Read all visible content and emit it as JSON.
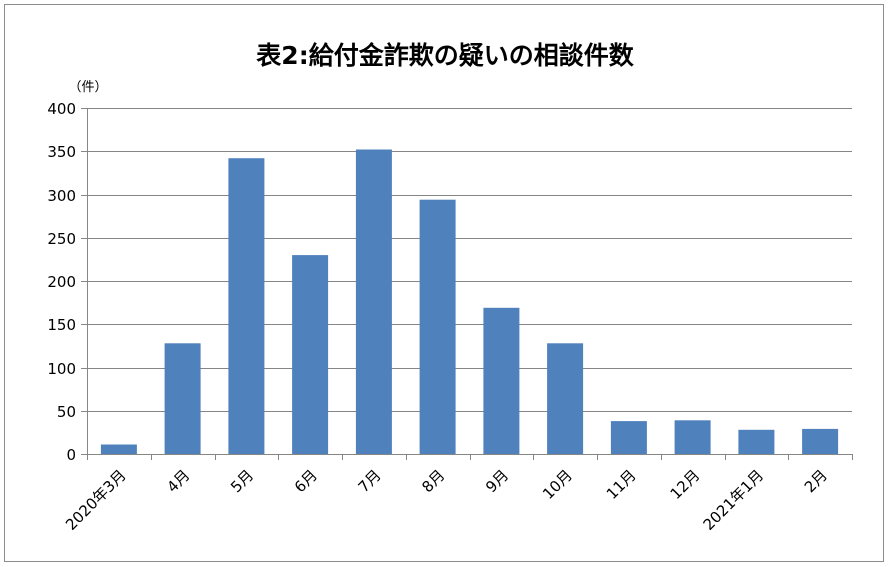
{
  "chart_data": {
    "type": "bar",
    "title": "表2:給付金詐欺の疑いの相談件数",
    "y_unit_label": "（件）",
    "categories": [
      "2020年3月",
      "4月",
      "5月",
      "6月",
      "7月",
      "8月",
      "9月",
      "10月",
      "11月",
      "12月",
      "2021年1月",
      "2月"
    ],
    "values": [
      11,
      128,
      342,
      230,
      352,
      294,
      169,
      128,
      38,
      39,
      28,
      29
    ],
    "ylim": [
      0,
      400
    ],
    "yticks": [
      0,
      50,
      100,
      150,
      200,
      250,
      300,
      350,
      400
    ],
    "grid": true,
    "legend": "none",
    "bar_color": "#4f81bd",
    "grid_color": "#868686"
  }
}
